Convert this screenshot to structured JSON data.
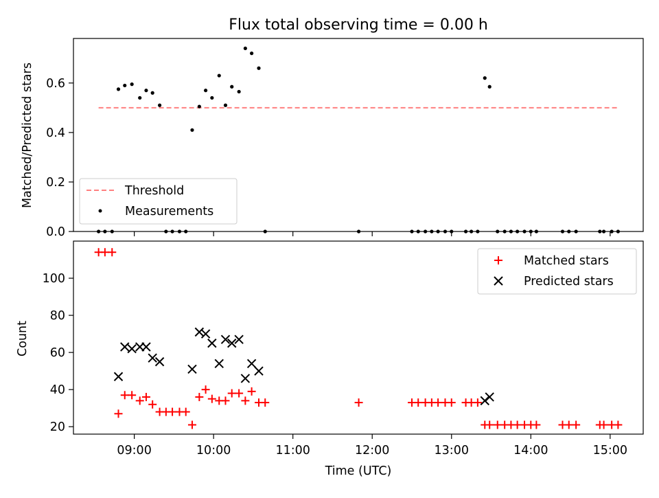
{
  "chart_data": [
    {
      "type": "scatter",
      "title": "Flux total observing time = 0.00 h",
      "xlabel": "",
      "ylabel": "Matched/Predicted stars",
      "xlim": [
        8.233,
        15.417
      ],
      "ylim": [
        0.0,
        0.78
      ],
      "yticks": [
        0.0,
        0.2,
        0.4,
        0.6
      ],
      "ytick_labels": [
        "0.0",
        "0.2",
        "0.4",
        "0.6"
      ],
      "threshold": {
        "name": "Threshold",
        "value": 0.5,
        "x_range": [
          8.55,
          15.1
        ],
        "color": "#ff7f7f"
      },
      "legend": {
        "placement": "lower-left",
        "entries": [
          "Threshold",
          "Measurements"
        ]
      },
      "series": [
        {
          "name": "Measurements",
          "marker": "dot",
          "color": "#000000",
          "points": [
            [
              8.55,
              0.0
            ],
            [
              8.63,
              0.0
            ],
            [
              8.72,
              0.0
            ],
            [
              8.8,
              0.575
            ],
            [
              8.88,
              0.59
            ],
            [
              8.97,
              0.595
            ],
            [
              9.07,
              0.54
            ],
            [
              9.15,
              0.57
            ],
            [
              9.23,
              0.56
            ],
            [
              9.32,
              0.51
            ],
            [
              9.4,
              0.0
            ],
            [
              9.48,
              0.0
            ],
            [
              9.57,
              0.0
            ],
            [
              9.65,
              0.0
            ],
            [
              9.73,
              0.41
            ],
            [
              9.82,
              0.505
            ],
            [
              9.9,
              0.57
            ],
            [
              9.98,
              0.54
            ],
            [
              10.07,
              0.63
            ],
            [
              10.15,
              0.51
            ],
            [
              10.23,
              0.585
            ],
            [
              10.32,
              0.565
            ],
            [
              10.4,
              0.74
            ],
            [
              10.48,
              0.72
            ],
            [
              10.57,
              0.66
            ],
            [
              10.65,
              0.0
            ],
            [
              11.83,
              0.0
            ],
            [
              12.5,
              0.0
            ],
            [
              12.58,
              0.0
            ],
            [
              12.67,
              0.0
            ],
            [
              12.75,
              0.0
            ],
            [
              12.83,
              0.0
            ],
            [
              12.92,
              0.0
            ],
            [
              13.0,
              0.0
            ],
            [
              13.18,
              0.0
            ],
            [
              13.25,
              0.0
            ],
            [
              13.33,
              0.0
            ],
            [
              13.42,
              0.62
            ],
            [
              13.48,
              0.585
            ],
            [
              13.58,
              0.0
            ],
            [
              13.67,
              0.0
            ],
            [
              13.75,
              0.0
            ],
            [
              13.83,
              0.0
            ],
            [
              13.92,
              0.0
            ],
            [
              14.0,
              0.0
            ],
            [
              14.07,
              0.0
            ],
            [
              14.4,
              0.0
            ],
            [
              14.48,
              0.0
            ],
            [
              14.57,
              0.0
            ],
            [
              14.87,
              0.0
            ],
            [
              14.92,
              0.0
            ],
            [
              15.02,
              0.0
            ],
            [
              15.1,
              0.0
            ]
          ]
        }
      ]
    },
    {
      "type": "scatter",
      "title": "",
      "xlabel": "Time (UTC)",
      "ylabel": "Count",
      "xlim": [
        8.233,
        15.417
      ],
      "ylim": [
        16,
        120
      ],
      "yticks": [
        20,
        40,
        60,
        80,
        100
      ],
      "ytick_labels": [
        "20",
        "40",
        "60",
        "80",
        "100"
      ],
      "xticks": [
        9,
        10,
        11,
        12,
        13,
        14,
        15
      ],
      "xtick_labels": [
        "09:00",
        "10:00",
        "11:00",
        "12:00",
        "13:00",
        "14:00",
        "15:00"
      ],
      "legend": {
        "placement": "upper-right",
        "entries": [
          "Matched stars",
          "Predicted stars"
        ]
      },
      "series": [
        {
          "name": "Matched stars",
          "marker": "plus",
          "color": "#ff0000",
          "points": [
            [
              8.55,
              114
            ],
            [
              8.63,
              114
            ],
            [
              8.72,
              114
            ],
            [
              8.8,
              27
            ],
            [
              8.88,
              37
            ],
            [
              8.97,
              37
            ],
            [
              9.07,
              34
            ],
            [
              9.15,
              36
            ],
            [
              9.23,
              32
            ],
            [
              9.32,
              28
            ],
            [
              9.4,
              28
            ],
            [
              9.48,
              28
            ],
            [
              9.57,
              28
            ],
            [
              9.65,
              28
            ],
            [
              9.73,
              21
            ],
            [
              9.82,
              36
            ],
            [
              9.9,
              40
            ],
            [
              9.98,
              35
            ],
            [
              10.07,
              34
            ],
            [
              10.15,
              34
            ],
            [
              10.23,
              38
            ],
            [
              10.32,
              38
            ],
            [
              10.4,
              34
            ],
            [
              10.48,
              39
            ],
            [
              10.57,
              33
            ],
            [
              10.65,
              33
            ],
            [
              11.83,
              33
            ],
            [
              12.5,
              33
            ],
            [
              12.58,
              33
            ],
            [
              12.67,
              33
            ],
            [
              12.75,
              33
            ],
            [
              12.83,
              33
            ],
            [
              12.92,
              33
            ],
            [
              13.0,
              33
            ],
            [
              13.18,
              33
            ],
            [
              13.25,
              33
            ],
            [
              13.33,
              33
            ],
            [
              13.42,
              21
            ],
            [
              13.48,
              21
            ],
            [
              13.58,
              21
            ],
            [
              13.67,
              21
            ],
            [
              13.75,
              21
            ],
            [
              13.83,
              21
            ],
            [
              13.92,
              21
            ],
            [
              14.0,
              21
            ],
            [
              14.07,
              21
            ],
            [
              14.4,
              21
            ],
            [
              14.48,
              21
            ],
            [
              14.57,
              21
            ],
            [
              14.87,
              21
            ],
            [
              14.92,
              21
            ],
            [
              15.02,
              21
            ],
            [
              15.1,
              21
            ]
          ]
        },
        {
          "name": "Predicted stars",
          "marker": "x",
          "color": "#000000",
          "points": [
            [
              8.8,
              47
            ],
            [
              8.88,
              63
            ],
            [
              8.97,
              62
            ],
            [
              9.07,
              63
            ],
            [
              9.15,
              63
            ],
            [
              9.23,
              57
            ],
            [
              9.32,
              55
            ],
            [
              9.73,
              51
            ],
            [
              9.82,
              71
            ],
            [
              9.9,
              70
            ],
            [
              9.98,
              65
            ],
            [
              10.07,
              54
            ],
            [
              10.15,
              67
            ],
            [
              10.23,
              65
            ],
            [
              10.32,
              67
            ],
            [
              10.4,
              46
            ],
            [
              10.48,
              54
            ],
            [
              10.57,
              50
            ],
            [
              13.42,
              34
            ],
            [
              13.48,
              36
            ]
          ]
        }
      ]
    }
  ]
}
